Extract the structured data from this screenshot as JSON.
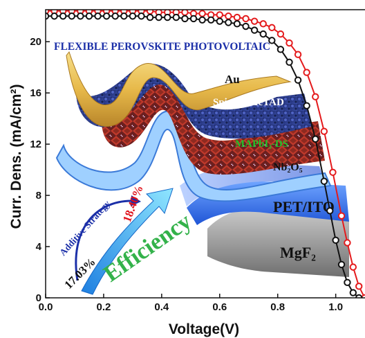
{
  "chart_data": {
    "type": "line",
    "title": "",
    "xlabel": "Voltage(V)",
    "ylabel": "Curr. Dens. (mA/cm²)",
    "xlim": [
      0.0,
      1.12
    ],
    "ylim": [
      0,
      22.5
    ],
    "x_ticks": [
      0.0,
      0.2,
      0.4,
      0.6,
      0.8,
      1.0
    ],
    "x_tick_labels": [
      "0.0",
      "0.2",
      "0.4",
      "0.6",
      "0.8",
      "1.0"
    ],
    "y_ticks": [
      0,
      4,
      8,
      12,
      16,
      20
    ],
    "y_tick_labels": [
      "0",
      "4",
      "8",
      "12",
      "16",
      "20"
    ],
    "grid": false,
    "series": [
      {
        "color": "#e41a1c",
        "marker": "open-circle",
        "x": [
          0.0,
          0.03,
          0.06,
          0.09,
          0.12,
          0.15,
          0.18,
          0.21,
          0.24,
          0.27,
          0.3,
          0.33,
          0.36,
          0.39,
          0.42,
          0.45,
          0.48,
          0.51,
          0.54,
          0.57,
          0.6,
          0.63,
          0.66,
          0.69,
          0.72,
          0.75,
          0.78,
          0.81,
          0.84,
          0.87,
          0.9,
          0.93,
          0.96,
          0.99,
          1.02,
          1.04,
          1.06,
          1.08,
          1.1
        ],
        "y": [
          22.4,
          22.4,
          22.4,
          22.4,
          22.4,
          22.4,
          22.4,
          22.4,
          22.4,
          22.4,
          22.4,
          22.4,
          22.4,
          22.3,
          22.3,
          22.3,
          22.3,
          22.2,
          22.2,
          22.1,
          22.1,
          22.0,
          21.9,
          21.8,
          21.6,
          21.4,
          21.1,
          20.6,
          19.9,
          19.0,
          17.6,
          15.7,
          13.0,
          9.8,
          6.4,
          4.3,
          2.4,
          0.9,
          0.0
        ]
      },
      {
        "color": "#111111",
        "marker": "open-circle",
        "x": [
          0.0,
          0.03,
          0.06,
          0.09,
          0.12,
          0.15,
          0.18,
          0.21,
          0.24,
          0.27,
          0.3,
          0.33,
          0.36,
          0.39,
          0.42,
          0.45,
          0.48,
          0.51,
          0.54,
          0.57,
          0.6,
          0.63,
          0.66,
          0.69,
          0.72,
          0.75,
          0.78,
          0.81,
          0.84,
          0.87,
          0.9,
          0.93,
          0.96,
          0.98,
          1.0,
          1.02,
          1.04,
          1.06,
          1.08
        ],
        "y": [
          22.0,
          22.0,
          22.0,
          22.0,
          22.0,
          22.0,
          22.0,
          22.0,
          22.0,
          22.0,
          22.0,
          22.0,
          21.9,
          21.9,
          21.9,
          21.9,
          21.8,
          21.8,
          21.7,
          21.7,
          21.6,
          21.5,
          21.4,
          21.2,
          20.9,
          20.6,
          20.1,
          19.4,
          18.4,
          17.0,
          15.0,
          12.4,
          9.1,
          6.8,
          4.5,
          2.6,
          1.2,
          0.4,
          0.0
        ]
      }
    ],
    "inset": {
      "banner": "FLEXIBLE PEROVSKITE PHOTOVOLTAIC",
      "layers": [
        "Au",
        "Spiro-OMeTAD",
        "MAPbI₃-DS",
        "Nb₂O₅",
        "PET/ITO",
        "MgF₂"
      ],
      "strategy": "Additive Strategy",
      "eff_before": "17.03%",
      "eff_after": "18.40%",
      "efficiency_word": "Efficiency"
    }
  }
}
